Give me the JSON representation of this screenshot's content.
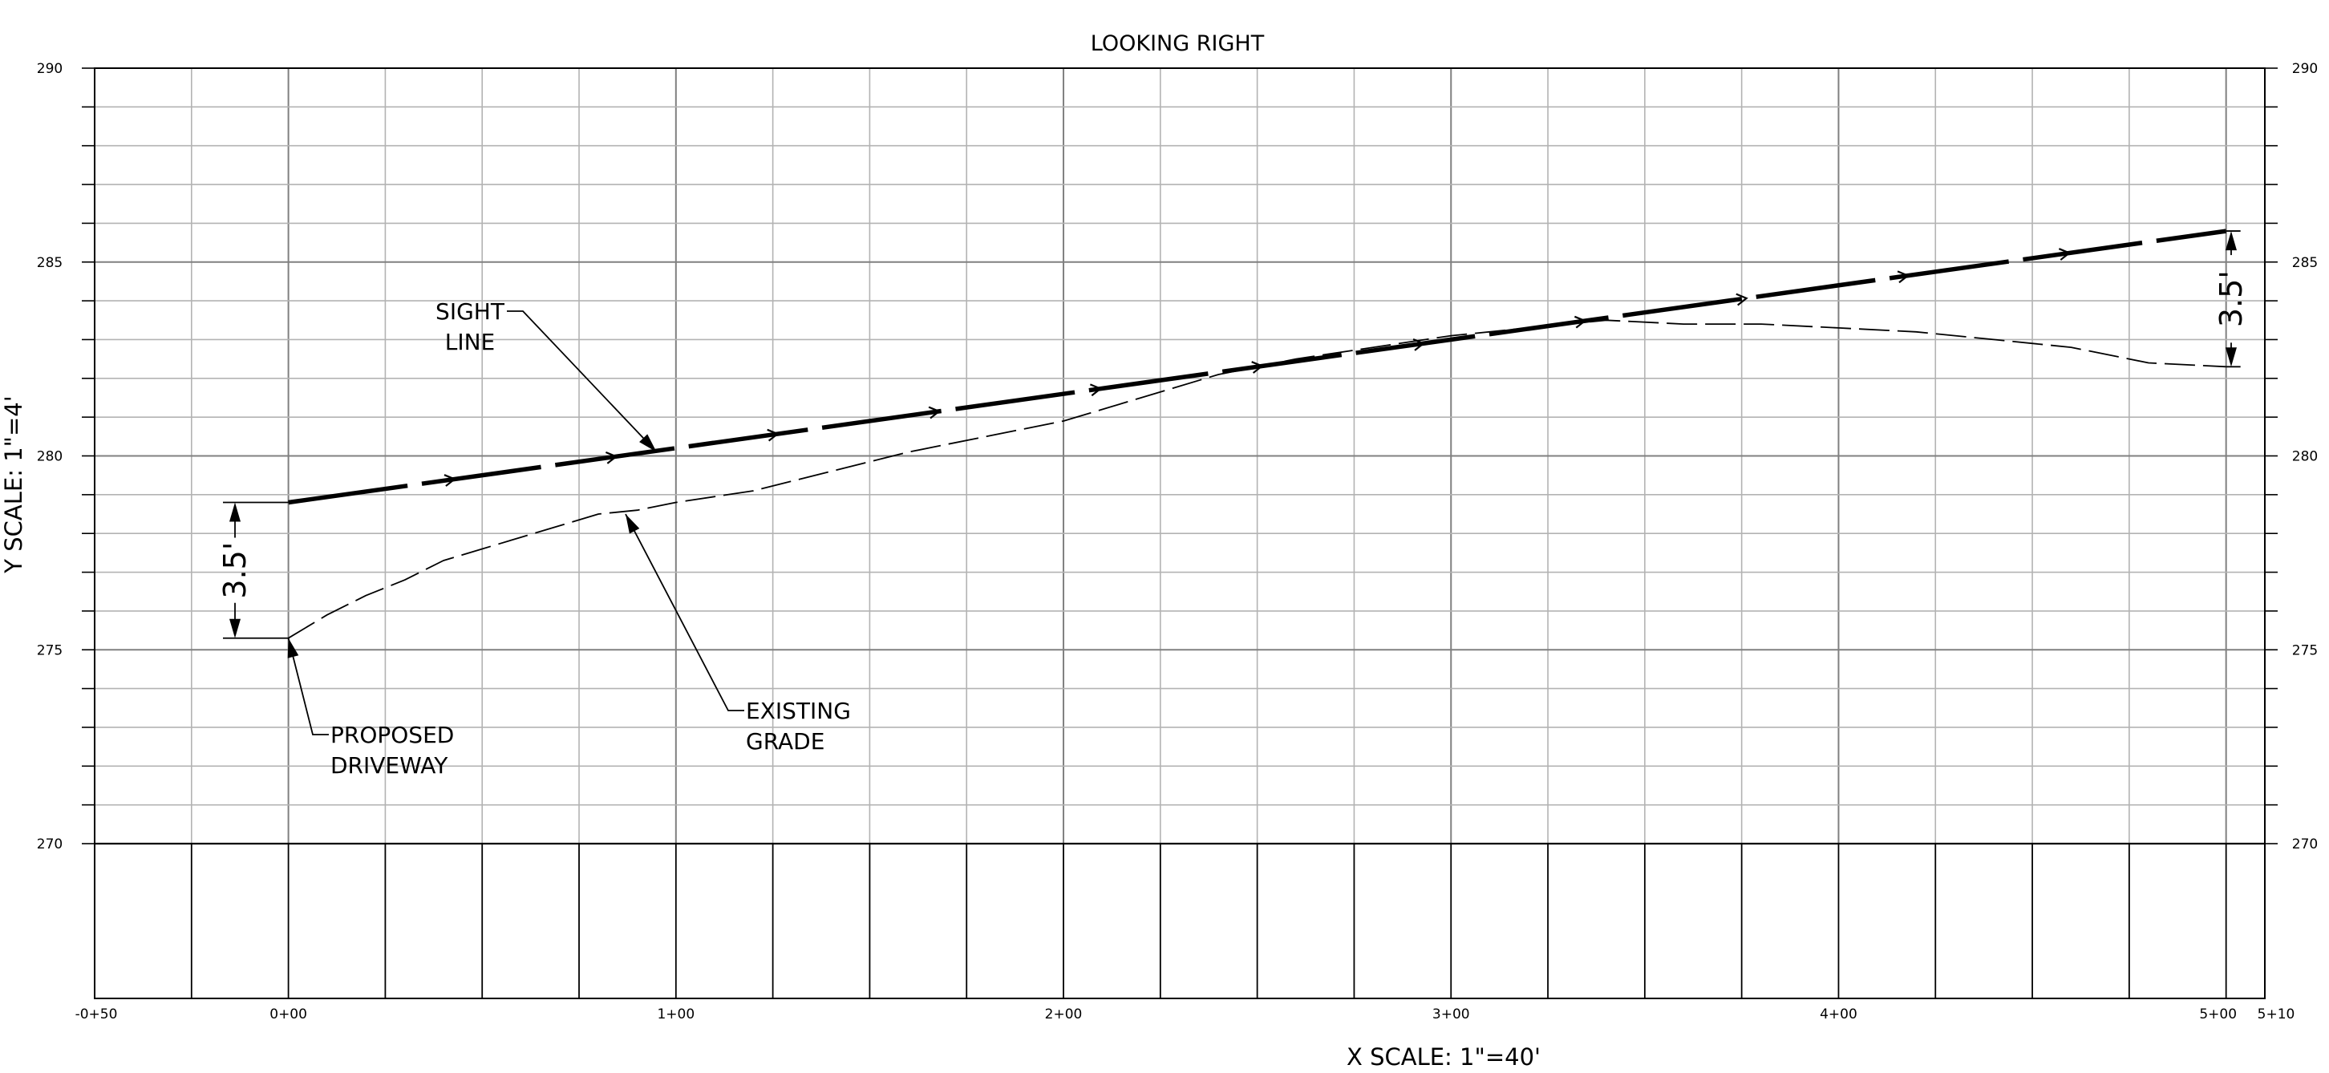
{
  "chart_data": {
    "type": "line",
    "title": "LOOKING RIGHT",
    "xlabel": "X SCALE: 1\"=40'",
    "ylabel": "Y SCALE: 1\"=4'",
    "xlim": [
      -50,
      510
    ],
    "ylim": [
      270,
      290
    ],
    "x_tick_labels": [
      {
        "x": -50,
        "label": "-0+50"
      },
      {
        "x": 0,
        "label": "0+00"
      },
      {
        "x": 100,
        "label": "1+00"
      },
      {
        "x": 200,
        "label": "2+00"
      },
      {
        "x": 300,
        "label": "3+00"
      },
      {
        "x": 400,
        "label": "4+00"
      },
      {
        "x": 500,
        "label": "5+00"
      },
      {
        "x": 510,
        "label": "5+10"
      }
    ],
    "y_tick_labels": [
      {
        "y": 290,
        "label": "290"
      },
      {
        "y": 285,
        "label": "285"
      },
      {
        "y": 280,
        "label": "280"
      },
      {
        "y": 275,
        "label": "275"
      },
      {
        "y": 270,
        "label": "270"
      }
    ],
    "grid": true,
    "series": [
      {
        "name": "SIGHT LINE",
        "style": "bold dashed with arrowheads",
        "x": [
          0,
          500
        ],
        "y": [
          278.8,
          285.8
        ]
      },
      {
        "name": "EXISTING GRADE",
        "style": "thin dashed",
        "x": [
          0,
          10,
          20,
          30,
          40,
          50,
          60,
          70,
          80,
          90,
          100,
          120,
          140,
          160,
          180,
          200,
          220,
          240,
          260,
          280,
          300,
          320,
          340,
          360,
          380,
          400,
          420,
          440,
          460,
          480,
          500
        ],
        "y": [
          275.3,
          275.9,
          276.4,
          276.8,
          277.3,
          277.6,
          277.9,
          278.2,
          278.5,
          278.6,
          278.8,
          279.1,
          279.6,
          280.1,
          280.5,
          280.9,
          281.5,
          282.1,
          282.5,
          282.8,
          283.1,
          283.3,
          283.5,
          283.4,
          283.4,
          283.3,
          283.2,
          283.0,
          282.8,
          282.4,
          282.3
        ]
      }
    ],
    "annotations": [
      {
        "text": "SIGHT\nLINE",
        "target_x": 95,
        "target_y": 280.1
      },
      {
        "text": "EXISTING\nGRADE",
        "target_x": 87,
        "target_y": 278.5
      },
      {
        "text": "PROPOSED\nDRIVEWAY",
        "target_x": 0,
        "target_y": 275.3
      },
      {
        "text": "3.5'",
        "type": "dimension",
        "x": 0,
        "from": 275.3,
        "to": 278.8
      },
      {
        "text": "3.5'",
        "type": "dimension",
        "x": 500,
        "from": 282.3,
        "to": 285.8
      }
    ],
    "colors": {
      "line": "#000000",
      "grid": "#b3b3b3",
      "background": "#ffffff"
    }
  }
}
